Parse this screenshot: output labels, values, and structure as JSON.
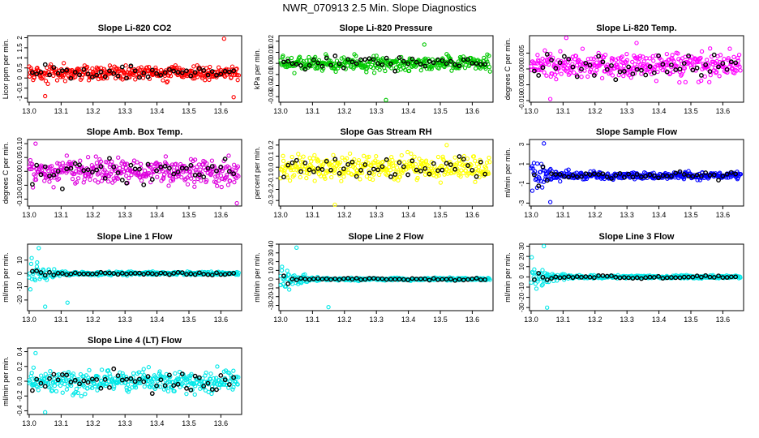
{
  "page": {
    "title": "NWR_070913  2.5 Min. Slope Diagnostics"
  },
  "chart_data": [
    {
      "type": "scatter",
      "title": "Slope Li-820 CO2",
      "xlabel": "",
      "ylabel": "Licor ppm per min.",
      "xlim": [
        12.995,
        13.665
      ],
      "ylim": [
        -1.2,
        2.1
      ],
      "xticks": [
        "13.0",
        "13.1",
        "13.2",
        "13.3",
        "13.4",
        "13.5",
        "13.6"
      ],
      "yticks": [
        -1,
        -0.5,
        0,
        0.5,
        1,
        1.5,
        2
      ],
      "ytick_labels": [
        "-1",
        "-0.5",
        "0",
        "0.5",
        "1",
        "1.5",
        "2"
      ],
      "color": "#ff0000",
      "center": 0.25,
      "spread": 0.35,
      "spike": 0,
      "outliers": [
        [
          13.61,
          1.95
        ],
        [
          13.64,
          -0.95
        ],
        [
          13.05,
          -0.9
        ]
      ]
    },
    {
      "type": "scatter",
      "title": "Slope Li-820 Pressure",
      "xlabel": "",
      "ylabel": "kPa per min.",
      "xlim": [
        12.995,
        13.665
      ],
      "ylim": [
        -0.035,
        0.025
      ],
      "xticks": [
        "13.0",
        "13.1",
        "13.2",
        "13.3",
        "13.4",
        "13.5",
        "13.6"
      ],
      "yticks": [
        -0.03,
        -0.02,
        -0.01,
        0,
        0.01,
        0.02
      ],
      "ytick_labels": [
        "-0.03",
        "-0.02",
        "-0.01",
        "0.00",
        "0.01",
        "0.02"
      ],
      "color": "#00c800",
      "center": 0.0,
      "spread": 0.006,
      "spike": 0,
      "outliers": [
        [
          13.33,
          -0.033
        ],
        [
          13.45,
          0.017
        ]
      ]
    },
    {
      "type": "scatter",
      "title": "Slope Li-820 Temp.",
      "xlabel": "",
      "ylabel": "degrees C per min.",
      "xlim": [
        12.995,
        13.665
      ],
      "ylim": [
        -0.0105,
        0.0105
      ],
      "xticks": [
        "13.0",
        "13.1",
        "13.2",
        "13.3",
        "13.4",
        "13.5",
        "13.6"
      ],
      "yticks": [
        -0.01,
        -0.005,
        0,
        0.005
      ],
      "ytick_labels": [
        "-0.010",
        "-0.005",
        "0.000",
        "0.005"
      ],
      "color": "#ff00ff",
      "center": 0.001,
      "spread": 0.004,
      "spike": 0,
      "outliers": [
        [
          13.11,
          0.0098
        ],
        [
          13.33,
          0.0082
        ],
        [
          13.06,
          -0.0095
        ]
      ]
    },
    {
      "type": "scatter",
      "title": "Slope Amb. Box Temp.",
      "xlabel": "",
      "ylabel": "degrees C per min.",
      "xlim": [
        12.995,
        13.665
      ],
      "ylim": [
        -0.125,
        0.115
      ],
      "xticks": [
        "13.0",
        "13.1",
        "13.2",
        "13.3",
        "13.4",
        "13.5",
        "13.6"
      ],
      "yticks": [
        -0.1,
        -0.05,
        0,
        0.05,
        0.1
      ],
      "ytick_labels": [
        "-0.10",
        "-0.05",
        "0.00",
        "0.05",
        "0.10"
      ],
      "color": "#dd00dd",
      "center": 0.0,
      "spread": 0.045,
      "spike": 0,
      "outliers": [
        [
          13.65,
          -0.115
        ],
        [
          13.02,
          0.1
        ]
      ]
    },
    {
      "type": "scatter",
      "title": "Slope Gas Stream RH",
      "xlabel": "",
      "ylabel": "percent per min.",
      "xlim": [
        12.995,
        13.665
      ],
      "ylim": [
        -0.35,
        0.25
      ],
      "xticks": [
        "13.0",
        "13.1",
        "13.2",
        "13.3",
        "13.4",
        "13.5",
        "13.6"
      ],
      "yticks": [
        -0.3,
        -0.2,
        -0.1,
        0,
        0.1,
        0.2
      ],
      "ytick_labels": [
        "-0.3",
        "-0.2",
        "-0.1",
        "0.0",
        "0.1",
        "0.2"
      ],
      "color": "#ffff00",
      "center": 0.0,
      "spread": 0.1,
      "spike": 0,
      "outliers": [
        [
          13.17,
          -0.34
        ],
        [
          13.52,
          0.2
        ]
      ]
    },
    {
      "type": "scatter",
      "title": "Slope Sample Flow",
      "xlabel": "",
      "ylabel": "ml/min per min.",
      "xlim": [
        12.995,
        13.665
      ],
      "ylim": [
        -3.3,
        3.5
      ],
      "xticks": [
        "13.0",
        "13.1",
        "13.2",
        "13.3",
        "13.4",
        "13.5",
        "13.6"
      ],
      "yticks": [
        -3,
        -1,
        1,
        3
      ],
      "ytick_labels": [
        "-3",
        "-1",
        "1",
        "3"
      ],
      "color": "#0000ff",
      "center": -0.2,
      "spread": 0.35,
      "spike": 2.6,
      "outliers": [
        [
          13.04,
          3.1
        ],
        [
          13.06,
          -2.9
        ]
      ]
    },
    {
      "type": "scatter",
      "title": "Slope Line 1 Flow",
      "xlabel": "",
      "ylabel": "ml/min per min.",
      "xlim": [
        12.995,
        13.665
      ],
      "ylim": [
        -28,
        22
      ],
      "xticks": [
        "13.0",
        "13.1",
        "13.2",
        "13.3",
        "13.4",
        "13.5",
        "13.6"
      ],
      "yticks": [
        -20,
        -10,
        0,
        10
      ],
      "ytick_labels": [
        "-20",
        "-10",
        "0",
        "10"
      ],
      "color": "#00e8e8",
      "center": 0.0,
      "spread": 1.2,
      "spike": 14,
      "outliers": [
        [
          13.05,
          -25
        ],
        [
          13.12,
          -22
        ],
        [
          13.03,
          19
        ]
      ]
    },
    {
      "type": "scatter",
      "title": "Slope Line 2 Flow",
      "xlabel": "",
      "ylabel": "ml/min per min.",
      "xlim": [
        12.995,
        13.665
      ],
      "ylim": [
        -36,
        40
      ],
      "xticks": [
        "13.0",
        "13.1",
        "13.2",
        "13.3",
        "13.4",
        "13.5",
        "13.6"
      ],
      "yticks": [
        -30,
        -20,
        -10,
        0,
        10,
        20,
        30,
        40
      ],
      "ytick_labels": [
        "-30",
        "-20",
        "-10",
        "0",
        "10",
        "20",
        "30",
        "40"
      ],
      "color": "#00e8e8",
      "center": 0.0,
      "spread": 1.5,
      "spike": 18,
      "outliers": [
        [
          13.15,
          -32
        ],
        [
          13.05,
          36
        ]
      ]
    },
    {
      "type": "scatter",
      "title": "Slope Line 3 Flow",
      "xlabel": "",
      "ylabel": "ml/min per min.",
      "xlim": [
        12.995,
        13.665
      ],
      "ylim": [
        -33,
        32
      ],
      "xticks": [
        "13.0",
        "13.1",
        "13.2",
        "13.3",
        "13.4",
        "13.5",
        "13.6"
      ],
      "yticks": [
        -30,
        -20,
        -10,
        0,
        10,
        20,
        30
      ],
      "ytick_labels": [
        "-30",
        "-20",
        "-10",
        "0",
        "10",
        "20",
        "30"
      ],
      "color": "#00e8e8",
      "center": 0.0,
      "spread": 1.5,
      "spike": 18,
      "outliers": [
        [
          13.05,
          -30
        ],
        [
          13.04,
          30
        ]
      ]
    },
    {
      "type": "scatter",
      "title": "Slope Line 4 (LT) Flow",
      "xlabel": "",
      "ylabel": "ml/min per min.",
      "xlim": [
        12.995,
        13.665
      ],
      "ylim": [
        -0.45,
        0.45
      ],
      "xticks": [
        "13.0",
        "13.1",
        "13.2",
        "13.3",
        "13.4",
        "13.5",
        "13.6"
      ],
      "yticks": [
        -0.4,
        -0.2,
        0,
        0.2,
        0.4
      ],
      "ytick_labels": [
        "-0.4",
        "-0.2",
        "0.0",
        "0.2",
        "0.4"
      ],
      "color": "#00e8e8",
      "center": 0.0,
      "spread": 0.14,
      "spike": 0,
      "outliers": [
        [
          13.02,
          0.38
        ],
        [
          13.05,
          -0.42
        ]
      ]
    }
  ]
}
